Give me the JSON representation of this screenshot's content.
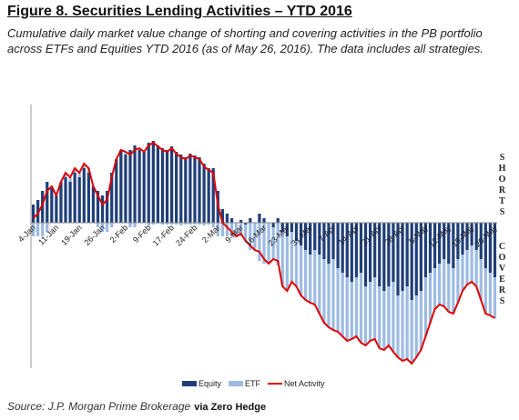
{
  "chart_data": {
    "type": "bar",
    "title": "Figure 8. Securities Lending Activities – YTD 2016",
    "subtitle": "Cumulative daily market value change of shorting and covering activities in the PB portfolio across ETFs and Equities YTD 2016 (as of May 26, 2016). The data includes all strategies.",
    "annotations": [
      "SHORTS",
      "COVERS"
    ],
    "source": "Source: J.P. Morgan Prime Brokerage",
    "credit": "via Zero Hedge",
    "categories": [
      "4-Jan",
      null,
      null,
      null,
      null,
      "11-Jan",
      null,
      null,
      null,
      null,
      "19-Jan",
      null,
      null,
      null,
      null,
      "26-Jan",
      null,
      null,
      null,
      null,
      "2-Feb",
      null,
      null,
      null,
      null,
      "9-Feb",
      null,
      null,
      null,
      null,
      "17-Feb",
      null,
      null,
      null,
      null,
      "24-Feb",
      null,
      null,
      null,
      null,
      "2-Mar",
      null,
      null,
      null,
      null,
      "9-Mar",
      null,
      null,
      null,
      null,
      "16-Mar",
      null,
      null,
      null,
      null,
      "23-Mar",
      null,
      null,
      null,
      null,
      "31-Mar",
      null,
      null,
      null,
      null,
      "7-Apr",
      null,
      null,
      null,
      null,
      "14-Apr",
      null,
      null,
      null,
      null,
      "21-Apr",
      null,
      null,
      null,
      null,
      "28-Apr",
      null,
      null,
      null,
      null,
      "5-May",
      null,
      null,
      null,
      null,
      "12-May",
      null,
      null,
      null,
      null,
      "19-May",
      null,
      null,
      null,
      null,
      "26-May"
    ],
    "series": [
      {
        "name": "Equity",
        "color": "#1f3f7a",
        "values": [
          20,
          25,
          35,
          45,
          40,
          30,
          45,
          50,
          45,
          55,
          50,
          60,
          55,
          40,
          35,
          30,
          35,
          55,
          70,
          80,
          75,
          80,
          85,
          80,
          78,
          88,
          90,
          85,
          82,
          80,
          84,
          78,
          75,
          72,
          76,
          74,
          72,
          65,
          60,
          60,
          35,
          15,
          10,
          5,
          0,
          3,
          -2,
          5,
          0,
          10,
          5,
          0,
          -5,
          5,
          -10,
          -15,
          -10,
          -20,
          -25,
          -30,
          -35,
          -30,
          -35,
          -40,
          -45,
          -40,
          -50,
          -55,
          -60,
          -65,
          -60,
          -55,
          -70,
          -65,
          -60,
          -70,
          -75,
          -70,
          -65,
          -80,
          -75,
          -70,
          -85,
          -80,
          -75,
          -60,
          -55,
          -50,
          -45,
          -40,
          -45,
          -50,
          -40,
          -35,
          -30,
          -25,
          -30,
          -40,
          -50,
          -55,
          -60
        ]
      },
      {
        "name": "ETF",
        "color": "#9dbbe3",
        "values": [
          -15,
          -15,
          -15,
          -10,
          0,
          0,
          0,
          5,
          5,
          5,
          5,
          5,
          5,
          0,
          -5,
          -10,
          -10,
          -5,
          0,
          0,
          3,
          -5,
          -5,
          2,
          0,
          -3,
          -2,
          -1,
          -2,
          -2,
          -2,
          -2,
          -3,
          -2,
          -2,
          -2,
          -2,
          -3,
          -2,
          -5,
          -15,
          -15,
          -15,
          -15,
          -15,
          -15,
          -18,
          -30,
          -30,
          -42,
          -45,
          -45,
          -35,
          -47,
          -60,
          -60,
          -55,
          -50,
          -55,
          -55,
          -53,
          -60,
          -65,
          -70,
          -70,
          -78,
          -70,
          -70,
          -70,
          -63,
          -65,
          -77,
          -65,
          -65,
          -68,
          -68,
          -65,
          -65,
          -77,
          -68,
          -77,
          -80,
          -70,
          -68,
          -65,
          -65,
          -55,
          -45,
          -45,
          -52,
          -53,
          -50,
          -48,
          -40,
          -38,
          -40,
          -40,
          -45,
          -50,
          -47,
          -45
        ]
      },
      {
        "name": "Net Activity",
        "color": "#e00000",
        "type": "line",
        "values": [
          5,
          10,
          20,
          35,
          40,
          30,
          45,
          55,
          50,
          60,
          55,
          65,
          60,
          40,
          30,
          20,
          25,
          50,
          70,
          80,
          78,
          75,
          80,
          82,
          78,
          85,
          88,
          84,
          80,
          78,
          82,
          76,
          72,
          70,
          74,
          72,
          70,
          62,
          58,
          55,
          20,
          0,
          -5,
          -10,
          -15,
          -12,
          -20,
          -25,
          -30,
          -32,
          -40,
          -45,
          -40,
          -42,
          -70,
          -75,
          -65,
          -70,
          -80,
          -85,
          -88,
          -90,
          -100,
          -110,
          -115,
          -118,
          -120,
          -125,
          -130,
          -128,
          -125,
          -132,
          -135,
          -130,
          -128,
          -138,
          -140,
          -135,
          -142,
          -148,
          -152,
          -150,
          -155,
          -148,
          -140,
          -125,
          -110,
          -95,
          -90,
          -92,
          -98,
          -100,
          -88,
          -75,
          -68,
          -65,
          -70,
          -85,
          -100,
          -102,
          -105
        ]
      }
    ],
    "ylim": [
      -160,
      130
    ],
    "legend": "bottom"
  }
}
